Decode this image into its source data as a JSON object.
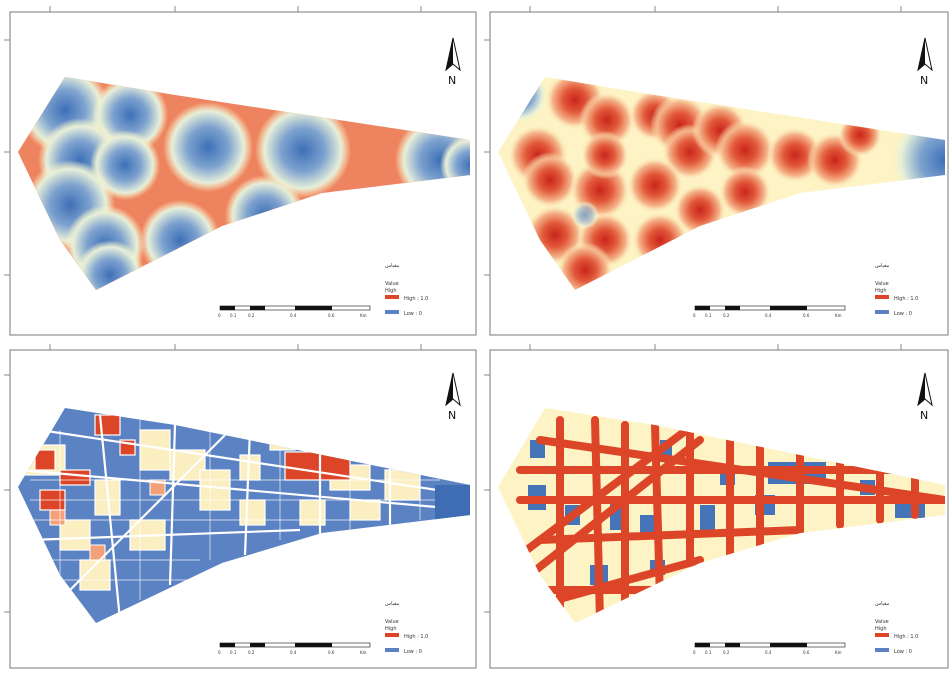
{
  "north_label": "N",
  "colors": {
    "high": "#d7301f",
    "mid": "#fdf5c4",
    "low": "#3d6fb6",
    "frame": "#7a7a7a",
    "background": "#ffffff"
  },
  "panels": [
    {
      "id": "top-left",
      "legend": {
        "title": "مقیاس",
        "layer": "Value",
        "sublabel": "High",
        "high_label": "High : 1.0",
        "low_label": "Low : 0"
      },
      "scale_labels": [
        "0",
        "0.1",
        "0.2",
        "0.4",
        "0.6",
        "Km"
      ]
    },
    {
      "id": "top-right",
      "legend": {
        "title": "مقیاس",
        "layer": "Value",
        "sublabel": "High",
        "high_label": "High : 1.0",
        "low_label": "Low : 0"
      },
      "scale_labels": [
        "0",
        "0.1",
        "0.2",
        "0.4",
        "0.6",
        "Km"
      ]
    },
    {
      "id": "bottom-left",
      "legend": {
        "title": "مقیاس",
        "layer": "Value",
        "sublabel": "High",
        "high_label": "High : 1.0",
        "low_label": "Low : 0"
      },
      "scale_labels": [
        "0",
        "0.1",
        "0.2",
        "0.4",
        "0.6",
        "Km"
      ]
    },
    {
      "id": "bottom-right",
      "legend": {
        "title": "مقیاس",
        "layer": "Value",
        "sublabel": "High",
        "high_label": "High : 1.0",
        "low_label": "Low : 0"
      },
      "scale_labels": [
        "0",
        "0.1",
        "0.2",
        "0.4",
        "0.6",
        "Km"
      ]
    }
  ]
}
